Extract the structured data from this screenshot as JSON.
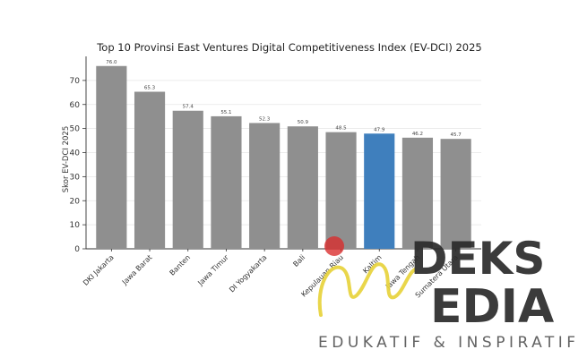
{
  "chart_data": {
    "type": "bar",
    "title": "Top 10 Provinsi East Ventures Digital Competitiveness Index (EV-DCI) 2025",
    "xlabel": "",
    "ylabel": "Skor EV-DCI 2025",
    "ylim": [
      0,
      80
    ],
    "yticks": [
      0,
      10,
      20,
      30,
      40,
      50,
      60,
      70
    ],
    "grid": true,
    "categories": [
      "DKI Jakarta",
      "Jawa Barat",
      "Banten",
      "Jawa Timur",
      "DI Yogyakarta",
      "Bali",
      "Kepulauan Riau",
      "Kaltim",
      "Jawa Tengah",
      "Sumatera Utara"
    ],
    "values": [
      76.0,
      65.3,
      57.4,
      55.1,
      52.3,
      50.9,
      48.5,
      47.9,
      46.2,
      45.7
    ],
    "value_labels": [
      "76.0",
      "65.3",
      "57.4",
      "55.1",
      "52.3",
      "50.9",
      "48.5",
      "47.9",
      "46.2",
      "45.7"
    ],
    "colors": {
      "default": "#8f8f8f",
      "highlight": "#3f7fbd",
      "highlight_category": "Kaltim"
    }
  },
  "watermark": {
    "line1": "DEKS",
    "line2": "EDIA",
    "tagline": "EDUKATIF & INSPIRATIF",
    "icon": "golden-m-swoosh-icon",
    "dot_color": "#d92b2b",
    "swoosh_color": "#e8d33c",
    "text_color": "#2b2b2b"
  }
}
